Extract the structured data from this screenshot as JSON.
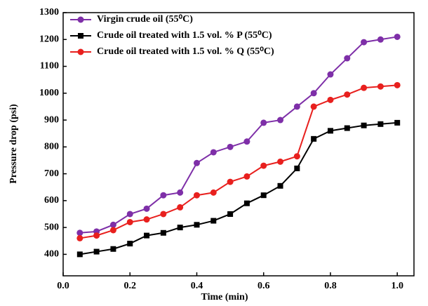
{
  "chart_data": {
    "type": "line",
    "x_label": "Time (min)",
    "y_label": "Pressure drop (psi)",
    "x": [
      0.05,
      0.1,
      0.15,
      0.2,
      0.25,
      0.3,
      0.35,
      0.4,
      0.45,
      0.5,
      0.55,
      0.6,
      0.65,
      0.7,
      0.75,
      0.8,
      0.85,
      0.9,
      0.95,
      1.0
    ],
    "series": [
      {
        "name": "Virgin crude oil (55⁰C)",
        "color": "#7e2fa8",
        "marker": "circle",
        "values": [
          480,
          485,
          510,
          550,
          570,
          620,
          630,
          740,
          780,
          800,
          820,
          890,
          900,
          950,
          1000,
          1070,
          1130,
          1190,
          1200,
          1210
        ]
      },
      {
        "name": "Crude oil treated with 1.5 vol. % P (55⁰C)",
        "color": "#000000",
        "marker": "square",
        "values": [
          400,
          410,
          420,
          440,
          470,
          480,
          500,
          510,
          525,
          550,
          590,
          620,
          655,
          720,
          830,
          860,
          870,
          880,
          885,
          890
        ]
      },
      {
        "name": "Crude oil treated with 1.5 vol. % Q (55⁰C)",
        "color": "#e8201e",
        "marker": "circle",
        "values": [
          460,
          470,
          490,
          520,
          530,
          550,
          575,
          620,
          630,
          670,
          690,
          730,
          745,
          765,
          950,
          975,
          995,
          1020,
          1025,
          1030
        ]
      }
    ],
    "xlim": [
      0,
      1.05
    ],
    "ylim": [
      320,
      1300
    ],
    "xticks": [
      {
        "value": 0,
        "label": "0.0"
      },
      0.2,
      0.4,
      0.6,
      0.8,
      {
        "value": 1,
        "label": "1.0"
      }
    ],
    "yticks": [
      400,
      500,
      600,
      700,
      800,
      900,
      1000,
      1100,
      1200,
      1300
    ],
    "grid": false,
    "legend": "upper left"
  }
}
